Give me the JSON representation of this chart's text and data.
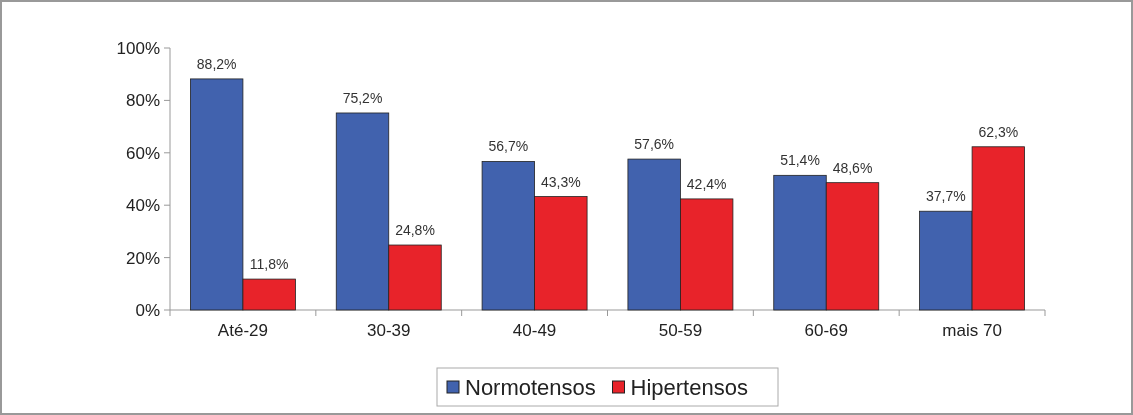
{
  "chart_data": {
    "type": "bar",
    "categories": [
      "Até-29",
      "30-39",
      "40-49",
      "50-59",
      "60-69",
      "mais 70"
    ],
    "series": [
      {
        "name": "Normotensos",
        "color": "#4162ae",
        "values": [
          88.2,
          75.2,
          56.7,
          57.6,
          51.4,
          37.7
        ],
        "value_labels": [
          "88,2%",
          "75,2%",
          "56,7%",
          "57,6%",
          "51,4%",
          "37,7%"
        ]
      },
      {
        "name": "Hipertensos",
        "color": "#e8232a",
        "values": [
          11.8,
          24.8,
          43.3,
          42.4,
          48.6,
          62.3
        ],
        "value_labels": [
          "11,8%",
          "24,8%",
          "43,3%",
          "42,4%",
          "48,6%",
          "62,3%"
        ]
      }
    ],
    "ylim": [
      0,
      100
    ],
    "yticks": [
      {
        "value": 0,
        "label": "0%"
      },
      {
        "value": 20,
        "label": "20%"
      },
      {
        "value": 40,
        "label": "40%"
      },
      {
        "value": 60,
        "label": "60%"
      },
      {
        "value": 80,
        "label": "80%"
      },
      {
        "value": 100,
        "label": "100%"
      }
    ],
    "grid": false,
    "legend": "bottom"
  }
}
